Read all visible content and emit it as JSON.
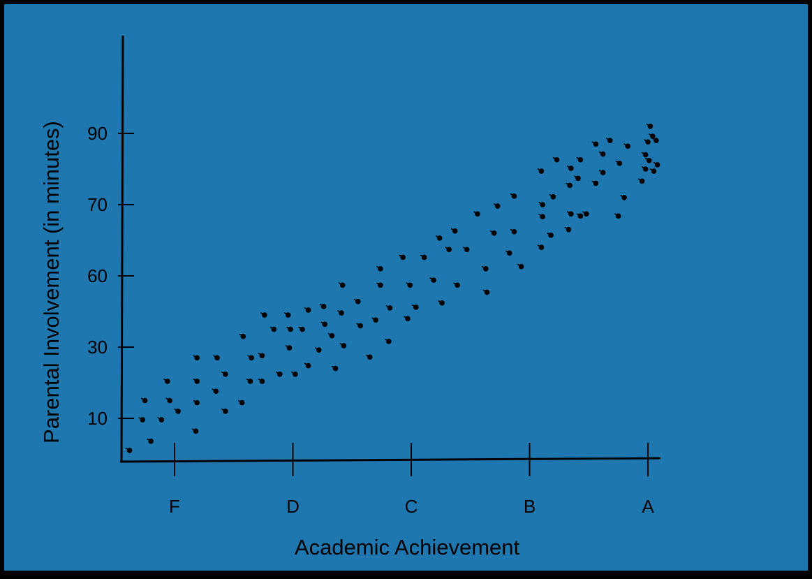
{
  "colors": {
    "background": "#1f77b0",
    "frame": "#000000",
    "ink": "#000000"
  },
  "chart_data": {
    "type": "scatter",
    "title": "",
    "xlabel": "Academic Achievement",
    "ylabel": "Parental Involvement (in minutes)",
    "x_categories": [
      "F",
      "D",
      "C",
      "B",
      "A"
    ],
    "y_ticks": [
      90,
      70,
      60,
      30,
      10
    ],
    "y_tick_scale": "uneven (ticks evenly spaced, labels non-linear)",
    "grid": false,
    "legend": "none",
    "points_note": "x in grade units (F=0, D=1, C=2, B=3, A=4); y in tick units (10=0 ... 90=4)",
    "points": [
      [
        -0.38,
        -0.45
      ],
      [
        -0.25,
        0.25
      ],
      [
        -0.2,
        -0.32
      ],
      [
        -0.27,
        -0.02
      ],
      [
        -0.11,
        -0.02
      ],
      [
        -0.06,
        0.52
      ],
      [
        -0.04,
        0.25
      ],
      [
        0.03,
        0.1
      ],
      [
        0.18,
        -0.18
      ],
      [
        0.19,
        0.22
      ],
      [
        0.19,
        0.52
      ],
      [
        0.19,
        0.85
      ],
      [
        0.36,
        0.85
      ],
      [
        0.35,
        0.38
      ],
      [
        0.43,
        0.62
      ],
      [
        0.43,
        0.1
      ],
      [
        0.57,
        0.22
      ],
      [
        0.58,
        1.15
      ],
      [
        0.65,
        0.85
      ],
      [
        0.64,
        0.52
      ],
      [
        0.74,
        0.88
      ],
      [
        0.74,
        0.52
      ],
      [
        0.76,
        1.45
      ],
      [
        0.84,
        1.25
      ],
      [
        0.89,
        0.62
      ],
      [
        0.96,
        1.45
      ],
      [
        0.97,
        0.99
      ],
      [
        0.98,
        1.25
      ],
      [
        1.02,
        0.62
      ],
      [
        1.08,
        1.25
      ],
      [
        1.13,
        1.52
      ],
      [
        1.13,
        0.74
      ],
      [
        1.22,
        0.96
      ],
      [
        1.26,
        1.57
      ],
      [
        1.27,
        1.32
      ],
      [
        1.33,
        1.16
      ],
      [
        1.36,
        0.7
      ],
      [
        1.41,
        1.48
      ],
      [
        1.42,
        1.87
      ],
      [
        1.43,
        1.02
      ],
      [
        1.55,
        1.64
      ],
      [
        1.57,
        1.3
      ],
      [
        1.65,
        0.86
      ],
      [
        1.7,
        1.38
      ],
      [
        1.74,
        2.1
      ],
      [
        1.74,
        1.87
      ],
      [
        1.81,
        1.08
      ],
      [
        1.82,
        1.55
      ],
      [
        1.93,
        2.26
      ],
      [
        1.97,
        1.4
      ],
      [
        1.99,
        1.87
      ],
      [
        2.04,
        1.56
      ],
      [
        2.11,
        2.26
      ],
      [
        2.19,
        1.94
      ],
      [
        2.24,
        2.53
      ],
      [
        2.26,
        1.62
      ],
      [
        2.32,
        2.37
      ],
      [
        2.37,
        2.63
      ],
      [
        2.39,
        1.87
      ],
      [
        2.47,
        2.37
      ],
      [
        2.56,
        2.87
      ],
      [
        2.63,
        2.1
      ],
      [
        2.64,
        1.77
      ],
      [
        2.7,
        2.6
      ],
      [
        2.73,
        2.98
      ],
      [
        2.83,
        2.32
      ],
      [
        2.87,
        2.62
      ],
      [
        2.87,
        3.12
      ],
      [
        2.93,
        2.13
      ],
      [
        3.1,
        2.4
      ],
      [
        3.1,
        3.47
      ],
      [
        3.11,
        3.0
      ],
      [
        3.11,
        2.83
      ],
      [
        3.18,
        2.57
      ],
      [
        3.2,
        3.11
      ],
      [
        3.23,
        3.63
      ],
      [
        3.33,
        2.65
      ],
      [
        3.34,
        3.27
      ],
      [
        3.35,
        3.51
      ],
      [
        3.35,
        2.87
      ],
      [
        3.41,
        3.37
      ],
      [
        3.43,
        2.84
      ],
      [
        3.43,
        3.63
      ],
      [
        3.48,
        2.87
      ],
      [
        3.56,
        3.85
      ],
      [
        3.56,
        3.3
      ],
      [
        3.62,
        3.71
      ],
      [
        3.62,
        3.45
      ],
      [
        3.68,
        3.9
      ],
      [
        3.75,
        2.84
      ],
      [
        3.76,
        3.58
      ],
      [
        3.8,
        3.1
      ],
      [
        3.83,
        3.82
      ],
      [
        3.95,
        3.33
      ],
      [
        3.98,
        3.5
      ],
      [
        3.98,
        3.7
      ],
      [
        4.0,
        3.88
      ],
      [
        4.01,
        3.62
      ],
      [
        4.02,
        4.1
      ],
      [
        4.04,
        3.96
      ],
      [
        4.07,
        3.9
      ],
      [
        4.08,
        3.56
      ],
      [
        4.05,
        3.47
      ]
    ]
  }
}
